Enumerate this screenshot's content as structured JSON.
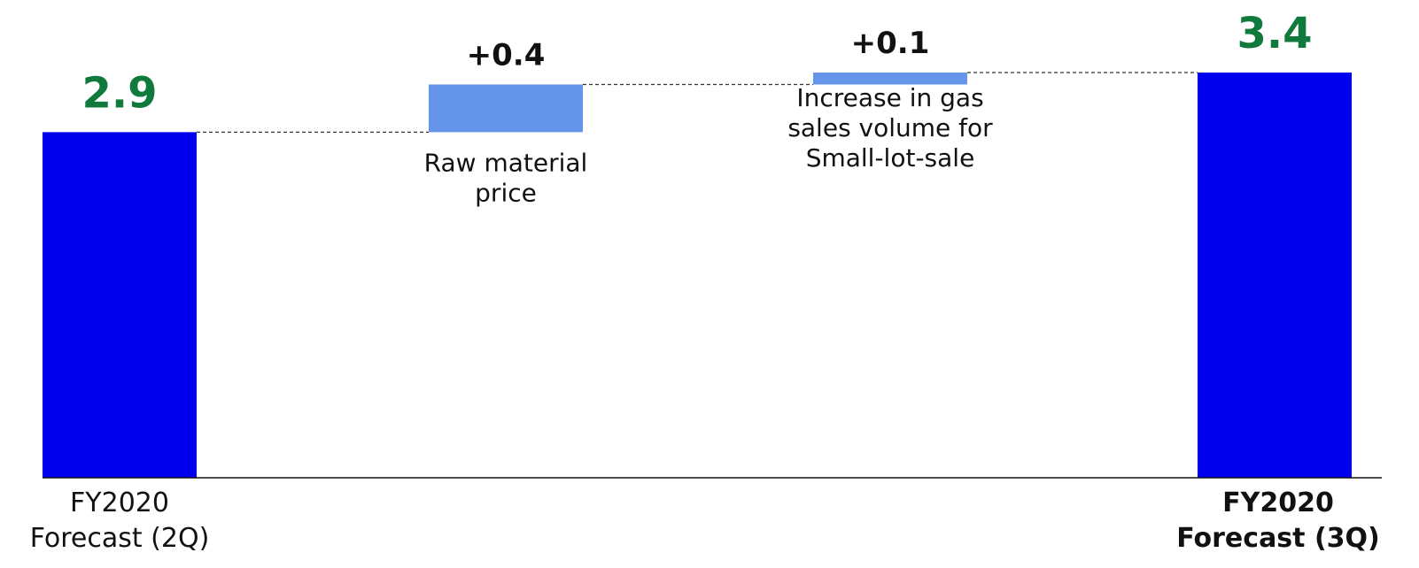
{
  "chart_data": {
    "type": "bar",
    "subtype": "waterfall",
    "steps": [
      {
        "kind": "total",
        "value": 2.9,
        "value_label": "2.9",
        "category_lines": [
          "FY2020",
          "Forecast (2Q)"
        ],
        "category_bold": false
      },
      {
        "kind": "delta",
        "value": 0.4,
        "value_label": "+0.4",
        "description_lines": [
          "Raw material",
          "price"
        ]
      },
      {
        "kind": "delta",
        "value": 0.1,
        "value_label": "+0.1",
        "description_lines": [
          "Increase in gas",
          "sales volume for",
          "Small-lot-sale"
        ]
      },
      {
        "kind": "total",
        "value": 3.4,
        "value_label": "3.4",
        "category_lines": [
          "FY2020",
          "Forecast (3Q)"
        ],
        "category_bold": true
      }
    ],
    "ylim": [
      0,
      3.4
    ],
    "grid": false,
    "colors": {
      "total": "#0000ee",
      "delta": "#6495e8",
      "total_label": "#0f7a3c"
    }
  }
}
